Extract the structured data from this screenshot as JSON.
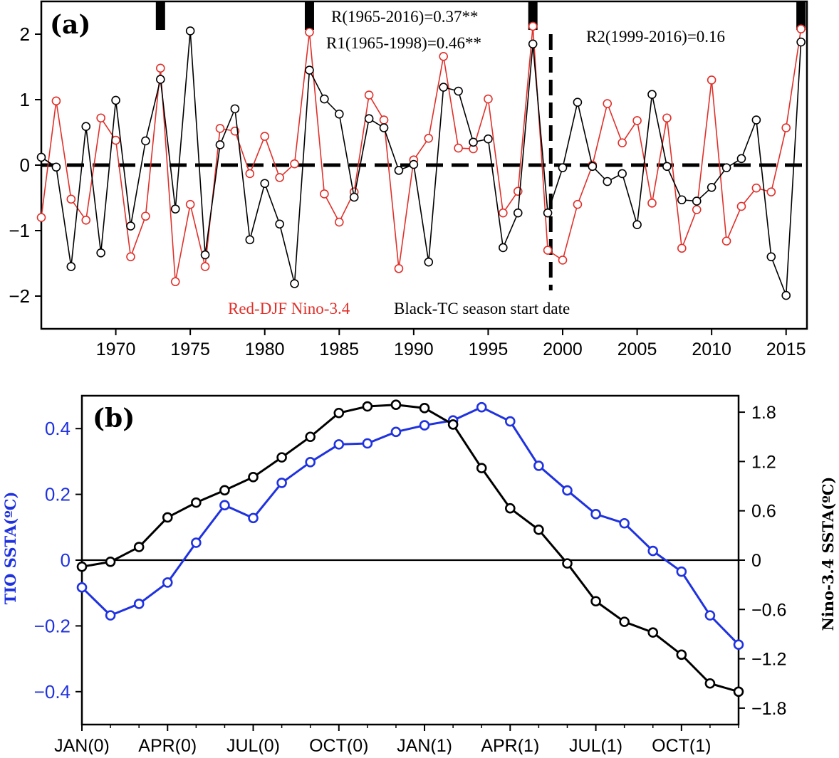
{
  "chart_data": [
    {
      "panel_label": "(a)",
      "type": "line",
      "title": "",
      "xlabel": "",
      "ylabel": "",
      "xlim": [
        1965,
        2016.4
      ],
      "ylim": [
        -2.5,
        2.5
      ],
      "grid": false,
      "x_ticks": [
        1970,
        1975,
        1980,
        1985,
        1990,
        1995,
        2000,
        2005,
        2010,
        2015
      ],
      "y_ticks": [
        -2,
        -1,
        0,
        1,
        2
      ],
      "x_tick_labels": [
        "1970",
        "1975",
        "1980",
        "1985",
        "1990",
        "1995",
        "2000",
        "2005",
        "2010",
        "2015"
      ],
      "y_tick_labels": [
        "−2",
        "−1",
        "0",
        "1",
        "2"
      ],
      "x": [
        1965,
        1966,
        1967,
        1968,
        1969,
        1970,
        1971,
        1972,
        1973,
        1974,
        1975,
        1976,
        1977,
        1978,
        1979,
        1980,
        1981,
        1982,
        1983,
        1984,
        1985,
        1986,
        1987,
        1988,
        1989,
        1990,
        1991,
        1992,
        1993,
        1994,
        1995,
        1996,
        1997,
        1998,
        1999,
        2000,
        2001,
        2002,
        2003,
        2004,
        2005,
        2006,
        2007,
        2008,
        2009,
        2010,
        2011,
        2012,
        2013,
        2014,
        2015,
        2016
      ],
      "series": [
        {
          "name": "Red-DJF Nino-3.4",
          "color": "#e0302a",
          "values": [
            -0.8,
            0.98,
            -0.52,
            -0.84,
            0.72,
            0.38,
            -1.4,
            -0.78,
            1.48,
            -1.78,
            -0.6,
            -1.55,
            0.56,
            0.52,
            -0.13,
            0.44,
            -0.19,
            0.02,
            2.03,
            -0.44,
            -0.87,
            -0.41,
            1.07,
            0.69,
            -1.58,
            0.08,
            0.41,
            1.66,
            0.26,
            0.25,
            1.01,
            -0.73,
            -0.4,
            2.12,
            -1.3,
            -1.45,
            -0.6,
            0.0,
            0.94,
            0.34,
            0.68,
            -0.58,
            0.72,
            -1.27,
            -0.68,
            1.3,
            -1.16,
            -0.63,
            -0.35,
            -0.41,
            0.57,
            2.08
          ]
        },
        {
          "name": "Black-TC season start date",
          "color": "#000000",
          "values": [
            0.12,
            -0.03,
            -1.55,
            0.59,
            -1.34,
            0.99,
            -0.93,
            0.37,
            1.31,
            -0.67,
            2.05,
            -1.37,
            0.31,
            0.86,
            -1.14,
            -0.28,
            -0.9,
            -1.81,
            1.45,
            1.01,
            0.78,
            -0.49,
            0.71,
            0.57,
            -0.08,
            0.01,
            -1.48,
            1.19,
            1.13,
            0.35,
            0.4,
            -1.26,
            -0.73,
            1.85,
            -0.73,
            -0.04,
            0.96,
            -0.02,
            -0.25,
            -0.13,
            -0.91,
            1.08,
            -0.02,
            -0.53,
            -0.55,
            -0.34,
            -0.04,
            0.1,
            0.69,
            -1.4,
            -1.99,
            1.88
          ]
        }
      ],
      "reference_line": {
        "y": 0,
        "style": "dashed"
      },
      "split_line": {
        "x": 1999.2,
        "style": "dashed"
      },
      "event_markers_years": [
        1973,
        1983,
        1998,
        2016
      ],
      "annotations": [
        "R(1965-2016)=0.37**",
        "R1(1965-1998)=0.46**",
        "R2(1999-2016)=0.16"
      ],
      "legend_red": "Red-DJF Nino-3.4",
      "legend_black": "Black-TC season start date"
    },
    {
      "panel_label": "(b)",
      "type": "line",
      "title": "",
      "xlabel": "",
      "ylabel_left": "TIO SSTA(ºC)",
      "ylabel_right": "Nino-3.4 SSTA(ºC)",
      "ylim_left": [
        -0.5,
        0.5
      ],
      "ylim_right": [
        -2.0,
        2.0
      ],
      "grid": false,
      "y_ticks_left": [
        -0.4,
        -0.2,
        0,
        0.2,
        0.4
      ],
      "y_tick_labels_left": [
        "−0.4",
        "−0.2",
        "0",
        "0.2",
        "0.4"
      ],
      "y_ticks_right": [
        -1.8,
        -1.2,
        -0.6,
        0,
        0.6,
        1.2,
        1.8
      ],
      "y_tick_labels_right": [
        "−1.8",
        "−1.2",
        "−0.6",
        "0",
        "0.6",
        "1.2",
        "1.8"
      ],
      "categories": [
        "JAN(0)",
        "FEB(0)",
        "MAR(0)",
        "APR(0)",
        "MAY(0)",
        "JUN(0)",
        "JUL(0)",
        "AUG(0)",
        "SEP(0)",
        "OCT(0)",
        "NOV(0)",
        "DEC(0)",
        "JAN(1)",
        "FEB(1)",
        "MAR(1)",
        "APR(1)",
        "MAY(1)",
        "JUN(1)",
        "JUL(1)",
        "AUG(1)",
        "SEP(1)",
        "OCT(1)",
        "NOV(1)",
        "DEC(1)"
      ],
      "x_tick_labels": [
        "JAN(0)",
        "APR(0)",
        "JUL(0)",
        "OCT(0)",
        "JAN(1)",
        "APR(1)",
        "JUL(1)",
        "OCT(1)"
      ],
      "series": [
        {
          "name": "TIO SSTA",
          "axis": "left",
          "color": "#1f32e0",
          "values": [
            -0.083,
            -0.168,
            -0.133,
            -0.068,
            0.053,
            0.167,
            0.128,
            0.235,
            0.298,
            0.352,
            0.355,
            0.39,
            0.41,
            0.425,
            0.465,
            0.422,
            0.287,
            0.212,
            0.14,
            0.112,
            0.028,
            -0.035,
            -0.168,
            -0.257
          ]
        },
        {
          "name": "Nino-3.4 SSTA",
          "axis": "right",
          "color": "#000000",
          "values": [
            -0.08,
            -0.02,
            0.16,
            0.52,
            0.7,
            0.85,
            1.01,
            1.25,
            1.5,
            1.79,
            1.87,
            1.89,
            1.85,
            1.65,
            1.12,
            0.63,
            0.37,
            -0.04,
            -0.5,
            -0.75,
            -0.88,
            -1.15,
            -1.5,
            -1.6
          ]
        }
      ]
    }
  ]
}
